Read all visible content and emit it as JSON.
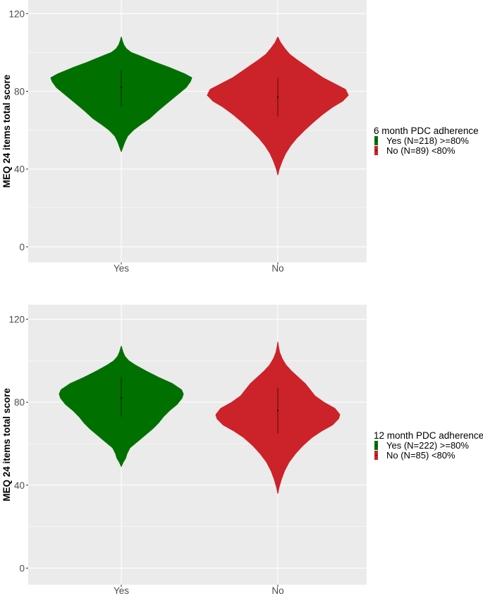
{
  "colors": {
    "yes": "#007000",
    "no": "#cc2229",
    "panel_bg": "#ebebeb",
    "grid": "#ffffff"
  },
  "chart_data": [
    {
      "type": "violin",
      "xlabel": "",
      "ylabel": "MEQ 24 items total score",
      "ylim": [
        -8,
        127
      ],
      "yticks": [
        0,
        40,
        80,
        120
      ],
      "categories": [
        "Yes",
        "No"
      ],
      "legend": {
        "title": "6 month PDC adherence",
        "position": "right",
        "entries": [
          "Yes (N=218) >=80%",
          "No (N=89) <80%"
        ]
      },
      "series": [
        {
          "name": "Yes (N=218) >=80%",
          "color": "#007000",
          "median": 82,
          "whisker": [
            72,
            91
          ],
          "profile": [
            [
              49,
              0.0
            ],
            [
              51,
              0.02
            ],
            [
              54,
              0.05
            ],
            [
              57,
              0.09
            ],
            [
              60,
              0.17
            ],
            [
              63,
              0.28
            ],
            [
              66,
              0.4
            ],
            [
              70,
              0.52
            ],
            [
              73,
              0.62
            ],
            [
              76,
              0.72
            ],
            [
              79,
              0.82
            ],
            [
              82,
              0.92
            ],
            [
              85,
              0.98
            ],
            [
              87,
              1.0
            ],
            [
              89,
              0.9
            ],
            [
              92,
              0.7
            ],
            [
              95,
              0.48
            ],
            [
              98,
              0.28
            ],
            [
              100,
              0.14
            ],
            [
              102,
              0.07
            ],
            [
              104,
              0.035
            ],
            [
              106,
              0.015
            ],
            [
              108,
              0.0
            ]
          ]
        },
        {
          "name": "No (N=89) <80%",
          "color": "#cc2229",
          "median": 77,
          "whisker": [
            67,
            87
          ],
          "profile": [
            [
              37,
              0.0
            ],
            [
              40,
              0.02
            ],
            [
              44,
              0.06
            ],
            [
              48,
              0.11
            ],
            [
              52,
              0.18
            ],
            [
              56,
              0.27
            ],
            [
              60,
              0.38
            ],
            [
              64,
              0.5
            ],
            [
              68,
              0.63
            ],
            [
              72,
              0.78
            ],
            [
              75,
              0.92
            ],
            [
              78,
              1.0
            ],
            [
              81,
              0.96
            ],
            [
              84,
              0.8
            ],
            [
              87,
              0.64
            ],
            [
              90,
              0.52
            ],
            [
              93,
              0.4
            ],
            [
              96,
              0.28
            ],
            [
              99,
              0.17
            ],
            [
              102,
              0.1
            ],
            [
              105,
              0.04
            ],
            [
              108,
              0.0
            ]
          ]
        }
      ]
    },
    {
      "type": "violin",
      "xlabel": "",
      "ylabel": "MEQ 24 items total score",
      "ylim": [
        -8,
        127
      ],
      "yticks": [
        0,
        40,
        80,
        120
      ],
      "categories": [
        "Yes",
        "No"
      ],
      "legend": {
        "title": "12 month PDC adherence",
        "position": "right",
        "entries": [
          "Yes (N=222) >=80%",
          "No (N=85) <80%"
        ]
      },
      "series": [
        {
          "name": "Yes (N=222) >=80%",
          "color": "#007000",
          "median": 82,
          "whisker": [
            73,
            92
          ],
          "profile": [
            [
              49,
              0.0
            ],
            [
              51,
              0.03
            ],
            [
              53,
              0.07
            ],
            [
              55,
              0.09
            ],
            [
              58,
              0.14
            ],
            [
              61,
              0.26
            ],
            [
              64,
              0.38
            ],
            [
              67,
              0.5
            ],
            [
              70,
              0.6
            ],
            [
              73,
              0.68
            ],
            [
              76,
              0.78
            ],
            [
              79,
              0.9
            ],
            [
              82,
              0.98
            ],
            [
              84,
              1.0
            ],
            [
              86,
              0.97
            ],
            [
              89,
              0.82
            ],
            [
              92,
              0.6
            ],
            [
              95,
              0.4
            ],
            [
              98,
              0.22
            ],
            [
              100,
              0.12
            ],
            [
              102,
              0.06
            ],
            [
              104,
              0.03
            ],
            [
              107,
              0.0
            ]
          ]
        },
        {
          "name": "No (N=85) <80%",
          "color": "#cc2229",
          "median": 76,
          "whisker": [
            65,
            87
          ],
          "profile": [
            [
              36,
              0.0
            ],
            [
              39,
              0.02
            ],
            [
              43,
              0.06
            ],
            [
              47,
              0.11
            ],
            [
              51,
              0.18
            ],
            [
              55,
              0.28
            ],
            [
              59,
              0.4
            ],
            [
              63,
              0.55
            ],
            [
              66,
              0.7
            ],
            [
              69,
              0.88
            ],
            [
              72,
              0.98
            ],
            [
              74,
              1.0
            ],
            [
              77,
              0.92
            ],
            [
              80,
              0.74
            ],
            [
              83,
              0.6
            ],
            [
              86,
              0.52
            ],
            [
              89,
              0.44
            ],
            [
              92,
              0.33
            ],
            [
              95,
              0.22
            ],
            [
              98,
              0.13
            ],
            [
              101,
              0.07
            ],
            [
              104,
              0.03
            ],
            [
              107,
              0.01
            ],
            [
              109,
              0.0
            ]
          ]
        }
      ]
    }
  ]
}
